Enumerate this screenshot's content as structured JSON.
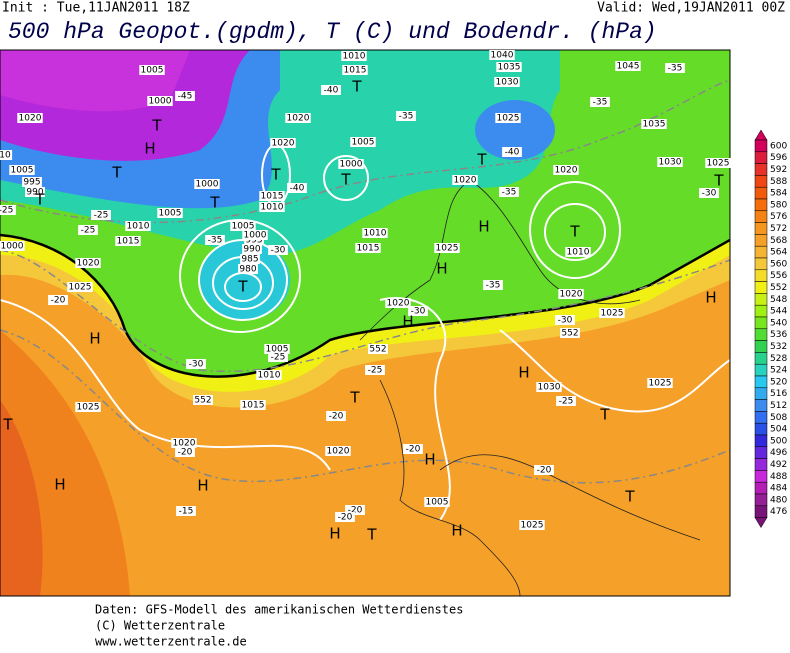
{
  "header": {
    "init": "Init : Tue,11JAN2011 18Z",
    "valid": "Valid: Wed,19JAN2011 00Z",
    "title": "500 hPa Geopot.(gpdm), T (C) und Bodendr. (hPa)"
  },
  "colorbar": {
    "steps": [
      {
        "value": 600,
        "color": "#d2005a"
      },
      {
        "value": 596,
        "color": "#dc1e3c"
      },
      {
        "value": 592,
        "color": "#e63228"
      },
      {
        "value": 588,
        "color": "#f04614"
      },
      {
        "value": 584,
        "color": "#f05a0a"
      },
      {
        "value": 580,
        "color": "#f56e0a"
      },
      {
        "value": 576,
        "color": "#f58214"
      },
      {
        "value": 572,
        "color": "#f5961e"
      },
      {
        "value": 568,
        "color": "#f5a028"
      },
      {
        "value": 564,
        "color": "#f5b432"
      },
      {
        "value": 560,
        "color": "#f5c83c"
      },
      {
        "value": 556,
        "color": "#f5dc28"
      },
      {
        "value": 552,
        "color": "#f0f014"
      },
      {
        "value": 548,
        "color": "#c8f014"
      },
      {
        "value": 544,
        "color": "#a0f014"
      },
      {
        "value": 540,
        "color": "#78e61e"
      },
      {
        "value": 536,
        "color": "#50dc32"
      },
      {
        "value": 532,
        "color": "#32d250"
      },
      {
        "value": 528,
        "color": "#28d28c"
      },
      {
        "value": 524,
        "color": "#28d2be"
      },
      {
        "value": 520,
        "color": "#28c8f0"
      },
      {
        "value": 516,
        "color": "#32aaf0"
      },
      {
        "value": 512,
        "color": "#3c8cf0"
      },
      {
        "value": 508,
        "color": "#326ef0"
      },
      {
        "value": 504,
        "color": "#2850e6"
      },
      {
        "value": 500,
        "color": "#3228dc"
      },
      {
        "value": 496,
        "color": "#6428dc"
      },
      {
        "value": 492,
        "color": "#9628dc"
      },
      {
        "value": 488,
        "color": "#c828dc"
      },
      {
        "value": 484,
        "color": "#b41eb4"
      },
      {
        "value": 480,
        "color": "#961e96"
      },
      {
        "value": 476,
        "color": "#781478"
      }
    ]
  },
  "map_labels": [
    "1005",
    "1000",
    "-45",
    "T",
    "H",
    "1020",
    "T",
    "995",
    "990",
    "T",
    "1000",
    "T",
    "1005",
    "T",
    "980",
    "985",
    "990",
    "995",
    "1000",
    "1005",
    "-30",
    "-35",
    "1015",
    "1010",
    "T",
    "-40",
    "1020",
    "1020",
    "T",
    "-40",
    "1015",
    "1010",
    "1005",
    "1000",
    "T",
    "-35",
    "1010",
    "1015",
    "1040",
    "1035",
    "1030",
    "1025",
    "-40",
    "T",
    "1020",
    "-35",
    "1020",
    "T",
    "1010",
    "1020",
    "1025",
    "-30",
    "552",
    "1045",
    "-35",
    "-35",
    "1035",
    "1030",
    "1025",
    "-30",
    "T",
    "H",
    "1025",
    "H",
    "1025",
    "H",
    "-35",
    "1020",
    "-30",
    "H",
    "552",
    "1005",
    "-25",
    "1010",
    "-30",
    "552",
    "1015",
    "T",
    "-25",
    "H",
    "1030",
    "-25",
    "T",
    "-20",
    "T",
    "H",
    "1020",
    "-20",
    "-20",
    "1005",
    "H",
    "1025",
    "H",
    "T",
    "-20",
    "-20",
    "H",
    "-15",
    "1020",
    "-20",
    "H",
    "T",
    "1025",
    "H",
    "-20",
    "1025",
    "1020",
    "1015",
    "1010",
    "-25",
    "-25",
    "1005",
    "1000",
    "10",
    "-25"
  ],
  "footer": {
    "lines": [
      "Daten: GFS-Modell des amerikanischen Wetterdienstes",
      "(C) Wetterzentrale",
      "www.wetterzentrale.de"
    ]
  }
}
